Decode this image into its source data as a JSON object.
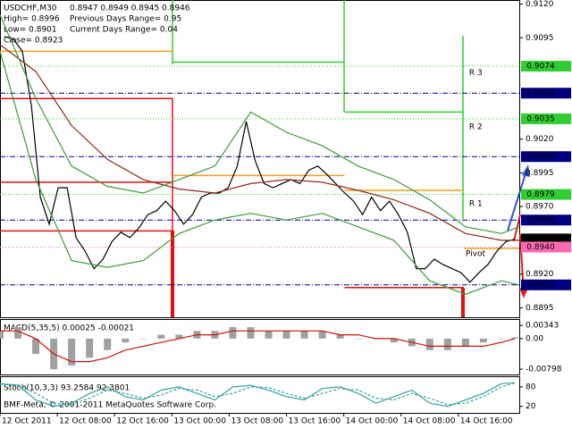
{
  "chart_data": [
    {
      "type": "line",
      "title": "USDCHF,M30",
      "subtitle": "0.8947 0.8949 0.8945 0.8946",
      "info": [
        "High= 0.8996",
        "Previous Days Range= 0.95",
        "Low= 0.8901",
        "Current Days Range= 0.04",
        "Close= 0.8923"
      ],
      "xlim": [
        0,
        72.5
      ],
      "ylim": [
        0.8888,
        0.9123
      ],
      "yticks": [
        {
          "value": 0.912,
          "label": "0.9120"
        },
        0.9095,
        {
          "value": 0.902,
          "label": "0.9020"
        },
        0.8995,
        {
          "value": 0.897,
          "label": "0.8970"
        },
        {
          "value": 0.892,
          "label": "0.8920"
        },
        0.8895
      ],
      "series": [
        {
          "color": "#000000",
          "x": [
            0.625,
            1.875,
            3.125,
            4.375,
            5.625,
            6.875,
            8.125,
            9.375,
            10.625,
            11.875,
            13.125,
            14.375,
            15.625,
            16.875,
            18.125,
            19.375,
            20.625,
            21.875,
            23.125,
            24.375,
            25.625,
            26.875,
            28.125,
            29.375,
            30.625,
            31.875,
            33.125,
            34.375,
            35.625,
            36.875,
            38.125,
            39.375,
            40.625,
            41.875,
            43.125,
            44.375,
            45.625,
            46.875,
            48.125,
            49.375,
            50.625,
            51.875,
            53.125,
            54.375,
            55.625,
            56.875,
            58.125,
            59.375,
            60.625,
            61.875,
            63.125,
            64.375,
            65.625,
            66.875,
            68.125,
            69.375,
            70.625,
            71.875
          ],
          "values": [
            0.9096,
            0.9094,
            0.9085,
            0.9045,
            0.8977,
            0.8957,
            0.8984,
            0.8984,
            0.8947,
            0.8937,
            0.8924,
            0.8931,
            0.8944,
            0.8951,
            0.8947,
            0.8954,
            0.8964,
            0.8967,
            0.8974,
            0.8967,
            0.8957,
            0.8964,
            0.8977,
            0.898,
            0.898,
            0.8984,
            0.9,
            0.9033,
            0.9004,
            0.8987,
            0.8984,
            0.8987,
            0.899,
            0.8987,
            0.8997,
            0.9,
            0.8994,
            0.8987,
            0.898,
            0.8974,
            0.8964,
            0.8977,
            0.8967,
            0.8974,
            0.8964,
            0.8951,
            0.8924,
            0.8924,
            0.8931,
            0.8927,
            0.8924,
            0.8921,
            0.8914,
            0.8921,
            0.8927,
            0.8937,
            0.8944,
            0.8946
          ]
        },
        {
          "color": "#8b2a1a",
          "x": [
            0,
            5,
            10,
            15,
            20,
            25,
            30,
            35,
            40,
            45,
            50,
            55,
            60,
            65,
            70,
            72.5
          ],
          "values": [
            0.909,
            0.907,
            0.903,
            0.9005,
            0.899,
            0.8983,
            0.898,
            0.8987,
            0.899,
            0.8988,
            0.8982,
            0.8975,
            0.8965,
            0.895,
            0.8945,
            0.8945
          ]
        },
        {
          "color": "#3a9a3a",
          "x": [
            0,
            5,
            10,
            15,
            20,
            25,
            30,
            35,
            40,
            45,
            50,
            55,
            60,
            65,
            70,
            72.5
          ],
          "values": [
            0.9112,
            0.905,
            0.9,
            0.8985,
            0.898,
            0.899,
            0.9,
            0.904,
            0.9025,
            0.9015,
            0.9,
            0.899,
            0.8975,
            0.8955,
            0.895,
            0.8955
          ]
        },
        {
          "color": "#3a9a3a",
          "x": [
            0,
            5,
            10,
            15,
            20,
            25,
            30,
            35,
            40,
            45,
            50,
            55,
            60,
            65,
            70,
            72.5
          ],
          "values": [
            0.9085,
            0.899,
            0.893,
            0.8925,
            0.893,
            0.895,
            0.896,
            0.8965,
            0.896,
            0.8965,
            0.8955,
            0.8945,
            0.8915,
            0.8905,
            0.8915,
            0.8912
          ]
        }
      ],
      "levels": [
        {
          "value": 0.9085,
          "x": [
            0,
            24.1
          ],
          "color": "#f0a020"
        },
        {
          "value": 0.905,
          "x": [
            0,
            24.1
          ],
          "color": "#e01010"
        },
        {
          "value": 0.8988,
          "x": [
            0,
            24.1
          ],
          "color": "#e01010"
        },
        {
          "value": 0.8952,
          "x": [
            0,
            24.1
          ],
          "color": "#e01010"
        },
        {
          "value": 0.9077,
          "x": [
            24.1,
            48.1
          ],
          "color": "#32cd32"
        },
        {
          "value": 0.8993,
          "x": [
            24.1,
            48.1
          ],
          "color": "#f0a020"
        },
        {
          "value": 0.904,
          "x": [
            48.1,
            64.75
          ],
          "color": "#32cd32"
        },
        {
          "value": 0.8982,
          "x": [
            48.1,
            64.75
          ],
          "color": "#f0a020"
        },
        {
          "value": 0.891,
          "x": [
            48.1,
            64.75
          ],
          "color": "#e01010"
        },
        {
          "value": 0.8939,
          "x": [
            64.75,
            72.5
          ],
          "color": "#f0a020"
        }
      ],
      "hlines": [
        {
          "value": 0.9074,
          "color": "#32cd32",
          "style": "dot"
        },
        {
          "value": 0.9054,
          "color": "#000080",
          "style": "dashdot"
        },
        {
          "value": 0.9035,
          "color": "#32cd32",
          "style": "dot"
        },
        {
          "value": 0.9007,
          "color": "#000080",
          "style": "dashdot"
        },
        {
          "value": 0.8979,
          "color": "#32cd32",
          "style": "dot"
        },
        {
          "value": {
            "value": 0.896,
            "label": "0.8960"
          },
          "color": "#000080",
          "style": "dashdot"
        },
        {
          "value": 0.8946,
          "color": "#000000",
          "style": "none"
        },
        {
          "value": {
            "value": 0.894,
            "label": "0.8940"
          },
          "color": "#ff69b4",
          "style": "dot"
        },
        {
          "value": 0.8912,
          "color": "#000080",
          "style": "dashdot"
        }
      ],
      "annotations": [
        {
          "text": "R 3",
          "x": 65.5,
          "y": 0.9069
        },
        {
          "text": "R 2",
          "x": 65.5,
          "y": 0.9029
        },
        {
          "text": "R 1",
          "x": 65.5,
          "y": 0.8972
        },
        {
          "text": "Pivot",
          "x": 65.0,
          "y": 0.8935
        }
      ]
    },
    {
      "type": "macd",
      "title": "MACD(5,35,5) 0.00025 -0.00021",
      "xlim": [
        0,
        72.5
      ],
      "ylim": [
        -0.0096,
        0.0051
      ],
      "yticks": [
        0.00343,
        {
          "value": 0,
          "label": "0.00"
        },
        -0.00798
      ],
      "x": [
        0,
        2.5,
        5,
        7.5,
        10,
        12.5,
        15,
        17.5,
        20,
        22.5,
        25,
        27.5,
        30,
        32.5,
        35,
        37.5,
        40,
        42.5,
        45,
        47.5,
        50,
        52.5,
        55,
        57.5,
        60,
        62.5,
        65,
        67.5,
        70,
        71.875
      ],
      "series": [
        {
          "color": "#a0a0a0",
          "values": [
            0.002,
            0.003,
            -0.004,
            -0.008,
            -0.007,
            -0.005,
            -0.003,
            -0.001,
            0,
            0.001,
            0.001,
            0.002,
            0.002,
            0.003,
            0.003,
            0.002,
            0.002,
            0.002,
            0.002,
            0.001,
            0,
            0,
            -0.001,
            -0.002,
            -0.003,
            -0.003,
            -0.002,
            -0.001,
            0,
            0.0003
          ]
        },
        {
          "color": "#d01010",
          "values": [
            0.002,
            0.002,
            0,
            -0.004,
            -0.006,
            -0.006,
            -0.005,
            -0.003,
            -0.002,
            -0.001,
            0,
            0.001,
            0.001,
            0.002,
            0.002,
            0.002,
            0.002,
            0.002,
            0.002,
            0.001,
            0.001,
            0,
            0,
            -0.001,
            -0.002,
            -0.002,
            -0.002,
            -0.002,
            -0.001,
            0
          ]
        }
      ]
    },
    {
      "type": "line",
      "title": "Stoch(10,3,3) 93.2584 92.3801",
      "footer": "BMF-Meta, © 2001-2011 MetaQuotes Software Corp.",
      "xlim": [
        0,
        72.5
      ],
      "ylim": [
        0,
        110
      ],
      "yticks": [
        80,
        20
      ],
      "xticks": [
        {
          "value": 0,
          "label": "12 Oct 2011"
        },
        {
          "value": 8,
          "label": "12 Oct 08:00"
        },
        {
          "value": 16,
          "label": "12 Oct 16:00"
        },
        {
          "value": 24,
          "label": "13 Oct 00:00"
        },
        {
          "value": 32,
          "label": "13 Oct 08:00"
        },
        {
          "value": 40,
          "label": "13 Oct 16:00"
        },
        {
          "value": 48,
          "label": "14 Oct 00:00"
        },
        {
          "value": 56,
          "label": "14 Oct 08:00"
        },
        {
          "value": 64,
          "label": "14 Oct 16:00"
        }
      ],
      "series": [
        {
          "color": "#3aa0a0",
          "x": [
            0,
            2.5,
            5,
            7.5,
            10,
            12.5,
            15,
            17.5,
            20,
            22.5,
            25,
            27.5,
            30,
            32.5,
            35,
            37.5,
            40,
            42.5,
            45,
            47.5,
            50,
            52.5,
            55,
            57.5,
            60,
            62.5,
            65,
            67.5,
            70,
            71.875
          ],
          "values": [
            90,
            85,
            40,
            20,
            30,
            60,
            80,
            50,
            40,
            70,
            80,
            60,
            40,
            80,
            85,
            70,
            50,
            40,
            75,
            80,
            60,
            30,
            50,
            70,
            30,
            20,
            40,
            60,
            90,
            93
          ]
        },
        {
          "color": "#3aa0a0",
          "dash": true,
          "x": [
            0,
            2.5,
            5,
            7.5,
            10,
            12.5,
            15,
            17.5,
            20,
            22.5,
            25,
            27.5,
            30,
            32.5,
            35,
            37.5,
            40,
            42.5,
            45,
            47.5,
            50,
            52.5,
            55,
            57.5,
            60,
            62.5,
            65,
            67.5,
            70,
            71.875
          ],
          "values": [
            88,
            87,
            60,
            30,
            25,
            45,
            70,
            60,
            45,
            55,
            75,
            70,
            50,
            60,
            80,
            78,
            60,
            45,
            60,
            75,
            70,
            45,
            40,
            60,
            45,
            25,
            30,
            50,
            80,
            92
          ]
        }
      ]
    }
  ]
}
